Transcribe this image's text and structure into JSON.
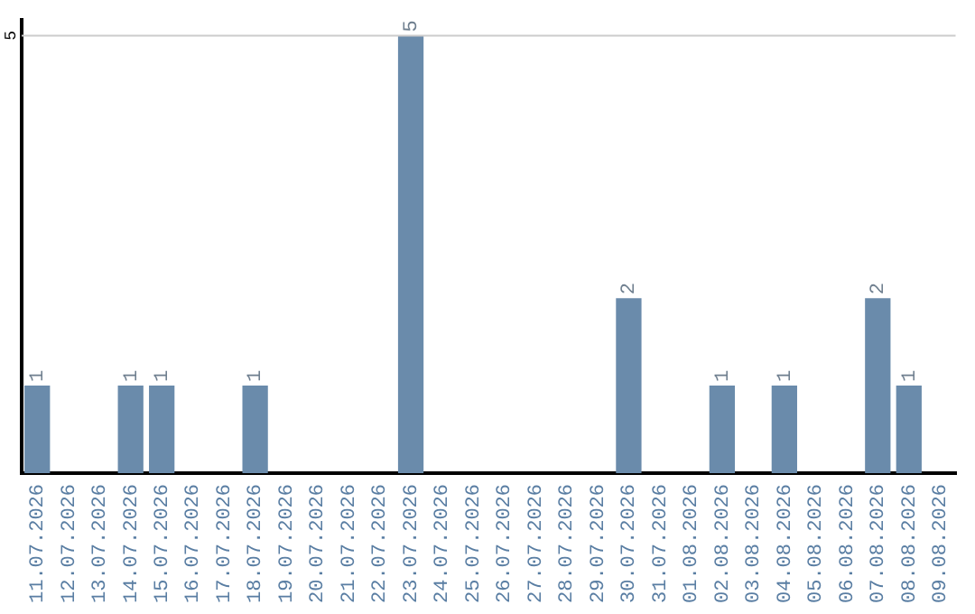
{
  "chart_data": {
    "type": "bar",
    "categories": [
      "11.07.2026",
      "12.07.2026",
      "13.07.2026",
      "14.07.2026",
      "15.07.2026",
      "16.07.2026",
      "17.07.2026",
      "18.07.2026",
      "19.07.2026",
      "20.07.2026",
      "21.07.2026",
      "22.07.2026",
      "23.07.2026",
      "24.07.2026",
      "25.07.2026",
      "26.07.2026",
      "27.07.2026",
      "28.07.2026",
      "29.07.2026",
      "30.07.2026",
      "31.07.2026",
      "01.08.2026",
      "02.08.2026",
      "03.08.2026",
      "04.08.2026",
      "05.08.2026",
      "06.08.2026",
      "07.08.2026",
      "08.08.2026",
      "09.08.2026"
    ],
    "values": [
      1,
      0,
      0,
      1,
      1,
      0,
      0,
      1,
      0,
      0,
      0,
      0,
      5,
      0,
      0,
      0,
      0,
      0,
      0,
      2,
      0,
      0,
      1,
      0,
      1,
      0,
      0,
      2,
      1,
      0
    ],
    "value_labels": [
      "1",
      null,
      null,
      "1",
      "1",
      null,
      null,
      "1",
      null,
      null,
      null,
      null,
      "5",
      null,
      null,
      null,
      null,
      null,
      null,
      "2",
      null,
      null,
      "1",
      null,
      "1",
      null,
      null,
      "2",
      "1",
      null
    ],
    "ylim": [
      0,
      5.2
    ],
    "color": "#6a8bab",
    "ref_lines": [
      {
        "axis": "y",
        "value": 5,
        "label": "5",
        "color": "#cccccc"
      }
    ],
    "legend": false
  }
}
